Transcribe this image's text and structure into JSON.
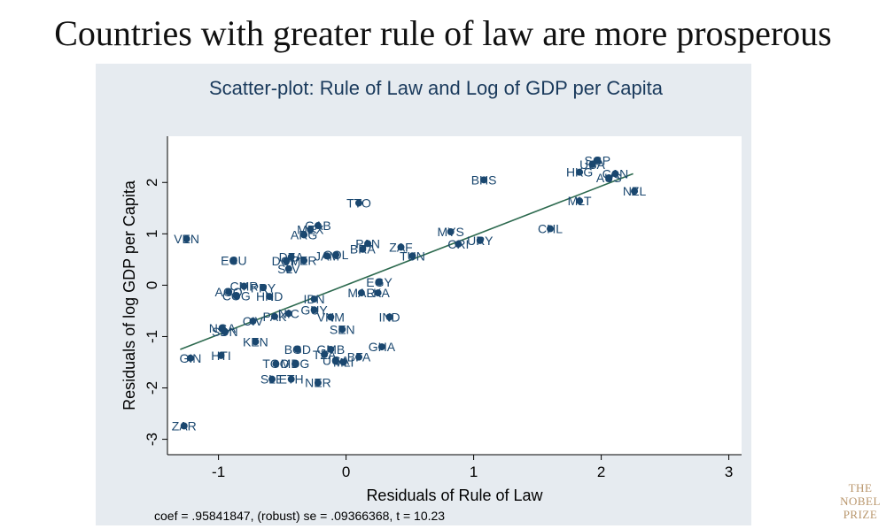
{
  "slide_title": "Countries with greater rule of law are more prosperous",
  "logo": {
    "line1": "THE",
    "line2": "NOBEL",
    "line3": "PRIZE"
  },
  "colors": {
    "frame_bg": "#e6ebf0",
    "plot_bg": "#ffffff",
    "marker": "#1a476f",
    "fit_line": "#2d6a4f",
    "logo": "#b8956a"
  },
  "chart_data": {
    "type": "scatter",
    "title": "Scatter-plot: Rule of Law and Log of GDP per Capita",
    "xlabel": "Residuals of Rule of Law",
    "ylabel": "Residuals of log GDP per Capita",
    "note": "coef = .95841847, (robust) se = .09366368, t = 10.23",
    "xlim": [
      -1.4,
      3.1
    ],
    "ylim": [
      -3.3,
      2.9
    ],
    "xticks": [
      -1,
      0,
      1,
      2,
      3
    ],
    "yticks": [
      -3,
      -2,
      -1,
      0,
      1,
      2
    ],
    "grid": false,
    "fit_line": {
      "x": [
        -1.3,
        2.25
      ],
      "y": [
        -1.25,
        2.17
      ]
    },
    "points": [
      {
        "label": "SGP",
        "x": 1.97,
        "y": 2.43
      },
      {
        "label": "USA",
        "x": 1.93,
        "y": 2.35
      },
      {
        "label": "HKG",
        "x": 1.83,
        "y": 2.2
      },
      {
        "label": "CAN",
        "x": 2.11,
        "y": 2.17
      },
      {
        "label": "AUS",
        "x": 2.06,
        "y": 2.09
      },
      {
        "label": "BHS",
        "x": 1.08,
        "y": 2.05
      },
      {
        "label": "NZL",
        "x": 2.26,
        "y": 1.83
      },
      {
        "label": "MLT",
        "x": 1.83,
        "y": 1.64
      },
      {
        "label": "TTO",
        "x": 0.1,
        "y": 1.6
      },
      {
        "label": "CHL",
        "x": 1.6,
        "y": 1.1
      },
      {
        "label": "GAB",
        "x": -0.22,
        "y": 1.16
      },
      {
        "label": "MEX",
        "x": -0.28,
        "y": 1.08
      },
      {
        "label": "ARG",
        "x": -0.33,
        "y": 0.98
      },
      {
        "label": "MYS",
        "x": 0.82,
        "y": 1.04
      },
      {
        "label": "VEN",
        "x": -1.25,
        "y": 0.9
      },
      {
        "label": "URY",
        "x": 1.05,
        "y": 0.87
      },
      {
        "label": "CRI",
        "x": 0.88,
        "y": 0.8
      },
      {
        "label": "PAN",
        "x": 0.17,
        "y": 0.81
      },
      {
        "label": "BRA",
        "x": 0.13,
        "y": 0.7
      },
      {
        "label": "ZAF",
        "x": 0.43,
        "y": 0.74
      },
      {
        "label": "TUN",
        "x": 0.52,
        "y": 0.57
      },
      {
        "label": "COL",
        "x": -0.08,
        "y": 0.59
      },
      {
        "label": "JAM",
        "x": -0.15,
        "y": 0.57
      },
      {
        "label": "DZA",
        "x": -0.43,
        "y": 0.55
      },
      {
        "label": "DOM",
        "x": -0.47,
        "y": 0.47
      },
      {
        "label": "PER",
        "x": -0.33,
        "y": 0.48
      },
      {
        "label": "ECU",
        "x": -0.88,
        "y": 0.48
      },
      {
        "label": "SLV",
        "x": -0.45,
        "y": 0.32
      },
      {
        "label": "EGY",
        "x": 0.26,
        "y": 0.06
      },
      {
        "label": "CMR",
        "x": -0.8,
        "y": -0.02
      },
      {
        "label": "PRY",
        "x": -0.65,
        "y": -0.05
      },
      {
        "label": "AGO",
        "x": -0.92,
        "y": -0.13
      },
      {
        "label": "COG",
        "x": -0.86,
        "y": -0.21
      },
      {
        "label": "HND",
        "x": -0.6,
        "y": -0.22
      },
      {
        "label": "MAR",
        "x": 0.12,
        "y": -0.15
      },
      {
        "label": "LKA",
        "x": 0.25,
        "y": -0.15
      },
      {
        "label": "IDN",
        "x": -0.25,
        "y": -0.27
      },
      {
        "label": "GUY",
        "x": -0.25,
        "y": -0.48
      },
      {
        "label": "NIC",
        "x": -0.45,
        "y": -0.55
      },
      {
        "label": "PAK",
        "x": -0.56,
        "y": -0.61
      },
      {
        "label": "VNM",
        "x": -0.12,
        "y": -0.62
      },
      {
        "label": "IND",
        "x": 0.34,
        "y": -0.62
      },
      {
        "label": "CIV",
        "x": -0.73,
        "y": -0.7
      },
      {
        "label": "NGA",
        "x": -0.97,
        "y": -0.84
      },
      {
        "label": "SDN",
        "x": -0.95,
        "y": -0.91
      },
      {
        "label": "SEN",
        "x": -0.03,
        "y": -0.86
      },
      {
        "label": "KEN",
        "x": -0.71,
        "y": -1.1
      },
      {
        "label": "BGD",
        "x": -0.38,
        "y": -1.25
      },
      {
        "label": "GMB",
        "x": -0.12,
        "y": -1.25
      },
      {
        "label": "GHA",
        "x": 0.28,
        "y": -1.2
      },
      {
        "label": "TZA",
        "x": -0.17,
        "y": -1.35
      },
      {
        "label": "BFA",
        "x": 0.1,
        "y": -1.4
      },
      {
        "label": "GIN",
        "x": -1.22,
        "y": -1.42
      },
      {
        "label": "HTI",
        "x": -0.98,
        "y": -1.37
      },
      {
        "label": "TGO",
        "x": -0.55,
        "y": -1.53
      },
      {
        "label": "MDG",
        "x": -0.4,
        "y": -1.53
      },
      {
        "label": "UGA",
        "x": -0.08,
        "y": -1.47
      },
      {
        "label": "MLI",
        "x": -0.02,
        "y": -1.5
      },
      {
        "label": "SLE",
        "x": -0.58,
        "y": -1.83
      },
      {
        "label": "ETH",
        "x": -0.43,
        "y": -1.83
      },
      {
        "label": "NER",
        "x": -0.22,
        "y": -1.9
      },
      {
        "label": "ZAR",
        "x": -1.27,
        "y": -2.74
      }
    ]
  }
}
